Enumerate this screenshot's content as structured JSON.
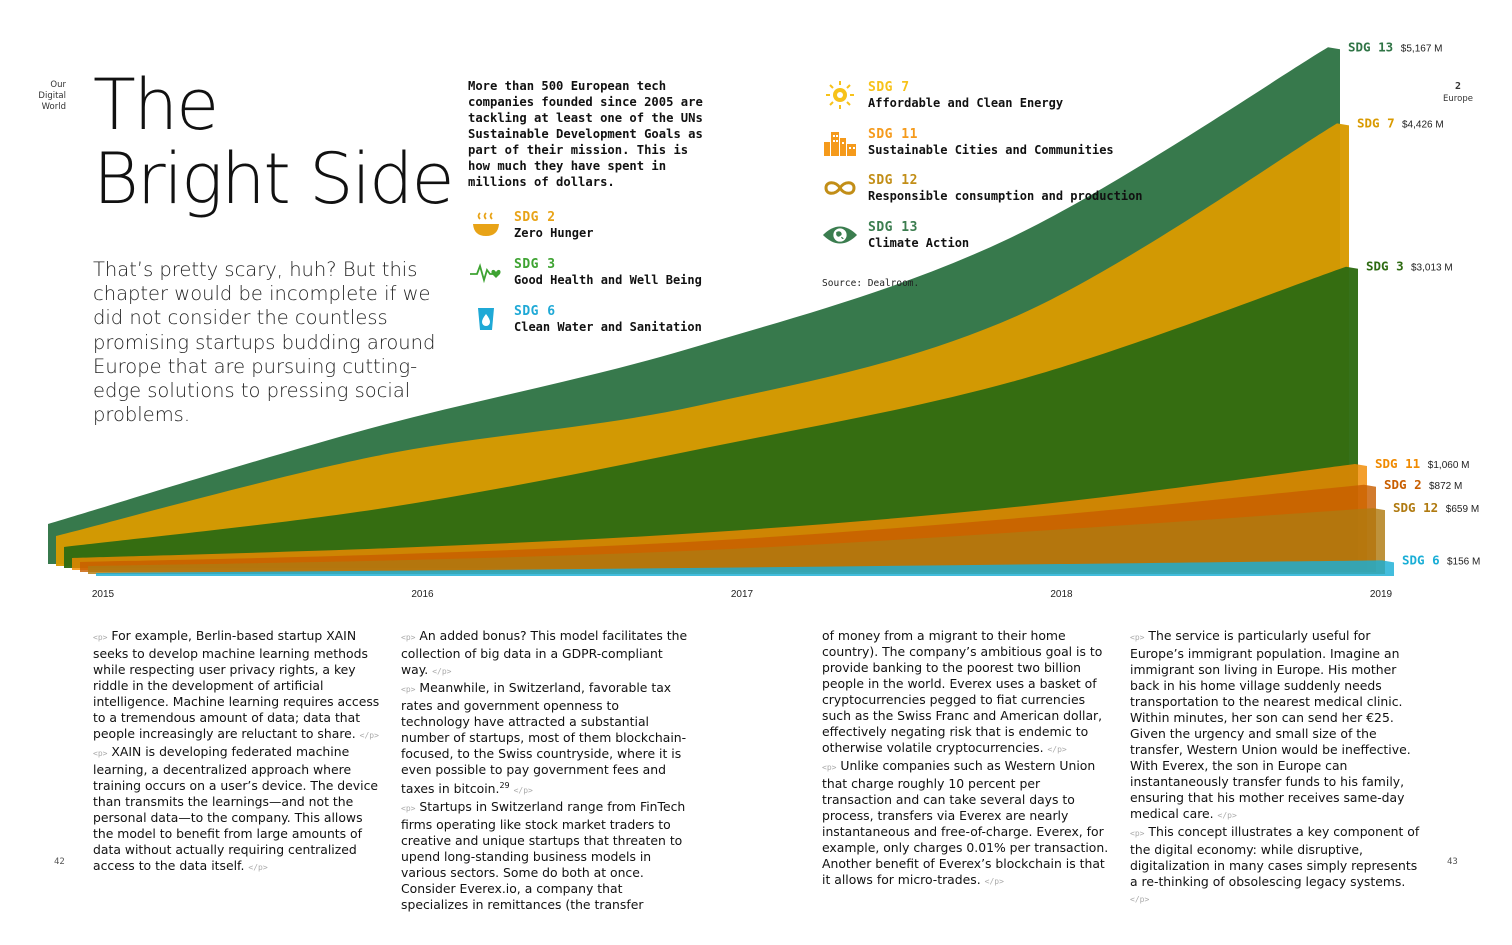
{
  "header": {
    "section_label": "Our\nDigital\nWorld",
    "section_right_num": "2",
    "section_right_label": "Europe",
    "title_line1": "The",
    "title_line2": "Bright Side",
    "intro": "That’s pretty scary, huh? But this chapter would be incomplete if we did not consider the countless promising startups budding around Europe that are pursuing cutting-edge solutions to pressing social problems.",
    "description": "More than 500 European tech companies founded since 2005 are tackling at least one of the UNs Sustainable Development Goals as part of their mission. This is how much they have spent in millions of dollars.",
    "source": "Source: Dealroom."
  },
  "legend": [
    {
      "code": "SDG 2",
      "name": "Zero Hunger",
      "color": "#e8a317",
      "icon": "bowl-icon"
    },
    {
      "code": "SDG 3",
      "name": "Good Health and Well Being",
      "color": "#3ea332",
      "icon": "heartbeat-icon"
    },
    {
      "code": "SDG 6",
      "name": "Clean Water and Sanitation",
      "color": "#1fa9d6",
      "icon": "water-drop-icon"
    },
    {
      "code": "SDG 7",
      "name": "Affordable and Clean Energy",
      "color": "#f7c21a",
      "icon": "sun-icon"
    },
    {
      "code": "SDG 11",
      "name": "Sustainable Cities and Communities",
      "color": "#f59a1b",
      "icon": "city-icon"
    },
    {
      "code": "SDG 12",
      "name": "Responsible consumption and production",
      "color": "#c28e17",
      "icon": "infinity-icon"
    },
    {
      "code": "SDG 13",
      "name": "Climate Action",
      "color": "#3b7d4f",
      "icon": "eye-globe-icon"
    }
  ],
  "chart_data": {
    "type": "area",
    "x": [
      "2015",
      "2016",
      "2017",
      "2018",
      "2019"
    ],
    "unit": "M",
    "series": [
      {
        "name": "SDG 13",
        "color": "#2f7445",
        "values": [
          400,
          1350,
          2150,
          3250,
          5167
        ],
        "end_label": "$5,167 M"
      },
      {
        "name": "SDG 7",
        "color": "#d99a00",
        "values": [
          300,
          1100,
          1600,
          2500,
          4426
        ],
        "end_label": "$4,426 M"
      },
      {
        "name": "SDG 3",
        "color": "#2e6b12",
        "values": [
          210,
          600,
          1200,
          1900,
          3013
        ],
        "end_label": "$3,013 M"
      },
      {
        "name": "SDG 11",
        "color": "#f08a00",
        "values": [
          120,
          220,
          380,
          650,
          1060
        ],
        "end_label": "$1,060 M"
      },
      {
        "name": "SDG 2",
        "color": "#c85e00",
        "values": [
          100,
          180,
          320,
          560,
          872
        ],
        "end_label": "$872 M"
      },
      {
        "name": "SDG 12",
        "color": "#b07a10",
        "values": [
          80,
          140,
          250,
          440,
          659
        ],
        "end_label": "$659 M"
      },
      {
        "name": "SDG 6",
        "color": "#1aaed6",
        "values": [
          30,
          55,
          85,
          120,
          156
        ],
        "end_label": "$156 M"
      }
    ]
  },
  "page_left": "42",
  "page_right": "43",
  "body_paragraphs": {
    "col1": "For example, Berlin-based startup XAIN seeks to develop machine learning methods while respecting user privacy rights, a key riddle in the development of artificial intelligence. Machine learning requires access to a tremendous amount of data; data that people increasingly are reluctant to share.",
    "col1b": "XAIN is developing federated machine learning, a decentralized approach where training occurs on a user’s device. The device than transmits the learnings—and not the personal data—to the company. This allows the model to benefit from large amounts of data without actually requiring centralized access to the data itself.",
    "col2": "An added bonus? This model facilitates the collection of big data in a GDPR-compliant way.",
    "col2b": "Meanwhile, in Switzerland, favorable tax rates and government openness to technology have attracted a substantial number of startups, most of them blockchain-focused, to the Swiss countryside, where it is even possible to pay government fees and taxes in bitcoin.",
    "col2b_ref": "29",
    "col2c": "Startups in Switzerland range from FinTech firms operating like stock market traders to creative and unique startups that threaten to upend long-standing business models in various sectors. Some do both at once. Consider Everex.io, a company that specializes in remittances (the transfer",
    "col3": "of money from a migrant to their home country). The company’s ambitious goal is to provide banking to the poorest two billion people in the world. Everex uses a basket of cryptocurrencies pegged to fiat currencies such as the Swiss Franc and American dollar, effectively negating risk that is endemic to otherwise volatile cryptocurrencies.",
    "col3b": "Unlike companies such as Western Union that charge roughly 10 percent per transaction and can take several days to process, transfers via Everex are nearly instantaneous and free-of-charge. Everex, for example, only charges 0.01% per transaction. Another benefit of Everex’s blockchain is that it allows for micro-trades.",
    "col4": "The service is particularly useful for Europe’s immigrant population. Imagine an immigrant son living in Europe. His mother back in his home village suddenly needs transportation to the nearest medical clinic. Within minutes, her son can send her €25. Given the urgency and small size of the transfer, Western Union would be ineffective. With Everex, the son in Europe can instantaneously transfer funds to his family, ensuring that his mother receives same-day medical care.",
    "col4b": "This concept illustrates a key component of the digital economy: while disruptive, digitalization in many cases simply represents a re-thinking of obsolescing legacy systems."
  },
  "pmark_open": "<p>",
  "pmark_close": "</p>"
}
